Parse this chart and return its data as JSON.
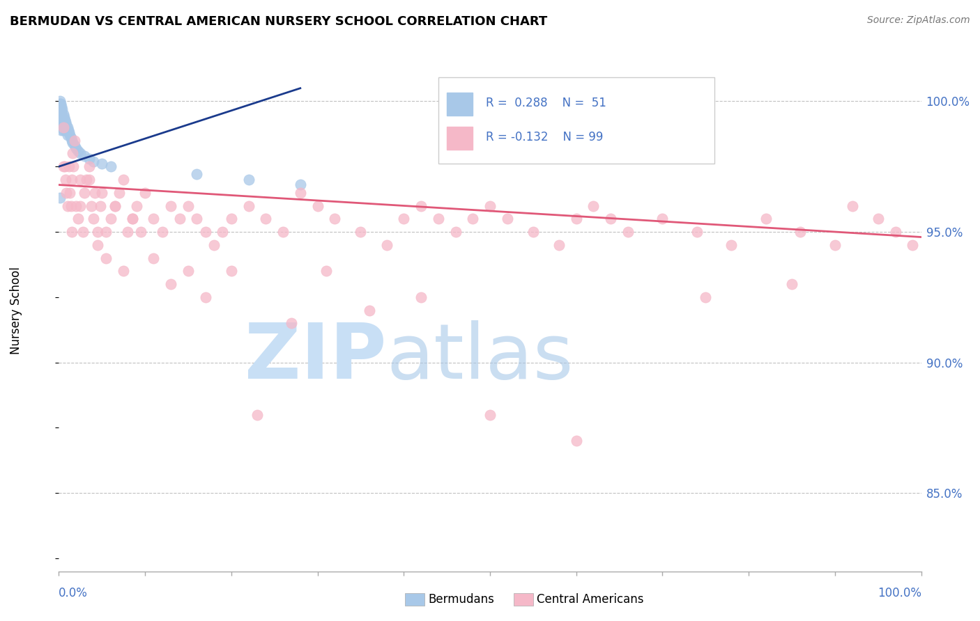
{
  "title": "BERMUDAN VS CENTRAL AMERICAN NURSERY SCHOOL CORRELATION CHART",
  "source": "Source: ZipAtlas.com",
  "ylabel": "Nursery School",
  "y_ticks": [
    0.85,
    0.9,
    0.95,
    1.0
  ],
  "y_tick_labels": [
    "85.0%",
    "90.0%",
    "95.0%",
    "100.0%"
  ],
  "x_range": [
    0.0,
    1.0
  ],
  "y_range": [
    0.82,
    1.015
  ],
  "blue_color": "#a8c8e8",
  "pink_color": "#f5b8c8",
  "blue_line_color": "#1a3a8c",
  "pink_line_color": "#e05878",
  "watermark_zip_color": "#c8dff0",
  "watermark_atlas_color": "#a8c8e8",
  "blue_x": [
    0.001,
    0.001,
    0.001,
    0.001,
    0.001,
    0.001,
    0.001,
    0.002,
    0.002,
    0.002,
    0.002,
    0.002,
    0.003,
    0.003,
    0.003,
    0.003,
    0.003,
    0.004,
    0.004,
    0.004,
    0.005,
    0.005,
    0.005,
    0.006,
    0.006,
    0.007,
    0.007,
    0.008,
    0.008,
    0.009,
    0.01,
    0.01,
    0.011,
    0.012,
    0.013,
    0.014,
    0.015,
    0.016,
    0.018,
    0.02,
    0.022,
    0.025,
    0.03,
    0.035,
    0.04,
    0.05,
    0.06,
    0.16,
    0.22,
    0.28,
    0.001
  ],
  "blue_y": [
    1.0,
    0.999,
    0.998,
    0.997,
    0.996,
    0.995,
    0.994,
    0.999,
    0.997,
    0.995,
    0.993,
    0.991,
    0.998,
    0.996,
    0.994,
    0.992,
    0.989,
    0.997,
    0.994,
    0.991,
    0.995,
    0.992,
    0.989,
    0.994,
    0.991,
    0.993,
    0.99,
    0.992,
    0.989,
    0.991,
    0.99,
    0.987,
    0.989,
    0.988,
    0.987,
    0.986,
    0.985,
    0.984,
    0.983,
    0.982,
    0.981,
    0.98,
    0.979,
    0.978,
    0.977,
    0.976,
    0.975,
    0.972,
    0.97,
    0.968,
    0.963
  ],
  "pink_x": [
    0.005,
    0.007,
    0.008,
    0.009,
    0.01,
    0.012,
    0.013,
    0.014,
    0.015,
    0.016,
    0.017,
    0.018,
    0.02,
    0.022,
    0.025,
    0.028,
    0.03,
    0.032,
    0.035,
    0.038,
    0.04,
    0.042,
    0.045,
    0.048,
    0.05,
    0.055,
    0.06,
    0.065,
    0.07,
    0.075,
    0.08,
    0.085,
    0.09,
    0.1,
    0.11,
    0.12,
    0.13,
    0.14,
    0.15,
    0.16,
    0.17,
    0.18,
    0.19,
    0.2,
    0.22,
    0.24,
    0.26,
    0.28,
    0.3,
    0.32,
    0.35,
    0.38,
    0.4,
    0.42,
    0.44,
    0.46,
    0.48,
    0.5,
    0.52,
    0.55,
    0.58,
    0.6,
    0.62,
    0.64,
    0.66,
    0.7,
    0.74,
    0.78,
    0.82,
    0.86,
    0.9,
    0.92,
    0.95,
    0.97,
    0.99,
    0.005,
    0.015,
    0.025,
    0.035,
    0.045,
    0.055,
    0.065,
    0.075,
    0.085,
    0.095,
    0.11,
    0.13,
    0.15,
    0.17,
    0.2,
    0.23,
    0.27,
    0.31,
    0.36,
    0.42,
    0.5,
    0.6,
    0.75,
    0.85
  ],
  "pink_y": [
    0.99,
    0.975,
    0.97,
    0.965,
    0.96,
    0.975,
    0.965,
    0.96,
    0.97,
    0.98,
    0.975,
    0.985,
    0.96,
    0.955,
    0.97,
    0.95,
    0.965,
    0.97,
    0.975,
    0.96,
    0.955,
    0.965,
    0.95,
    0.96,
    0.965,
    0.95,
    0.955,
    0.96,
    0.965,
    0.97,
    0.95,
    0.955,
    0.96,
    0.965,
    0.955,
    0.95,
    0.96,
    0.955,
    0.96,
    0.955,
    0.95,
    0.945,
    0.95,
    0.955,
    0.96,
    0.955,
    0.95,
    0.965,
    0.96,
    0.955,
    0.95,
    0.945,
    0.955,
    0.96,
    0.955,
    0.95,
    0.955,
    0.96,
    0.955,
    0.95,
    0.945,
    0.955,
    0.96,
    0.955,
    0.95,
    0.955,
    0.95,
    0.945,
    0.955,
    0.95,
    0.945,
    0.96,
    0.955,
    0.95,
    0.945,
    0.975,
    0.95,
    0.96,
    0.97,
    0.945,
    0.94,
    0.96,
    0.935,
    0.955,
    0.95,
    0.94,
    0.93,
    0.935,
    0.925,
    0.935,
    0.88,
    0.915,
    0.935,
    0.92,
    0.925,
    0.88,
    0.87,
    0.925,
    0.93
  ],
  "blue_line_x": [
    0.0,
    0.28
  ],
  "blue_line_y": [
    0.975,
    1.005
  ],
  "pink_line_x": [
    0.0,
    1.0
  ],
  "pink_line_y": [
    0.968,
    0.948
  ]
}
